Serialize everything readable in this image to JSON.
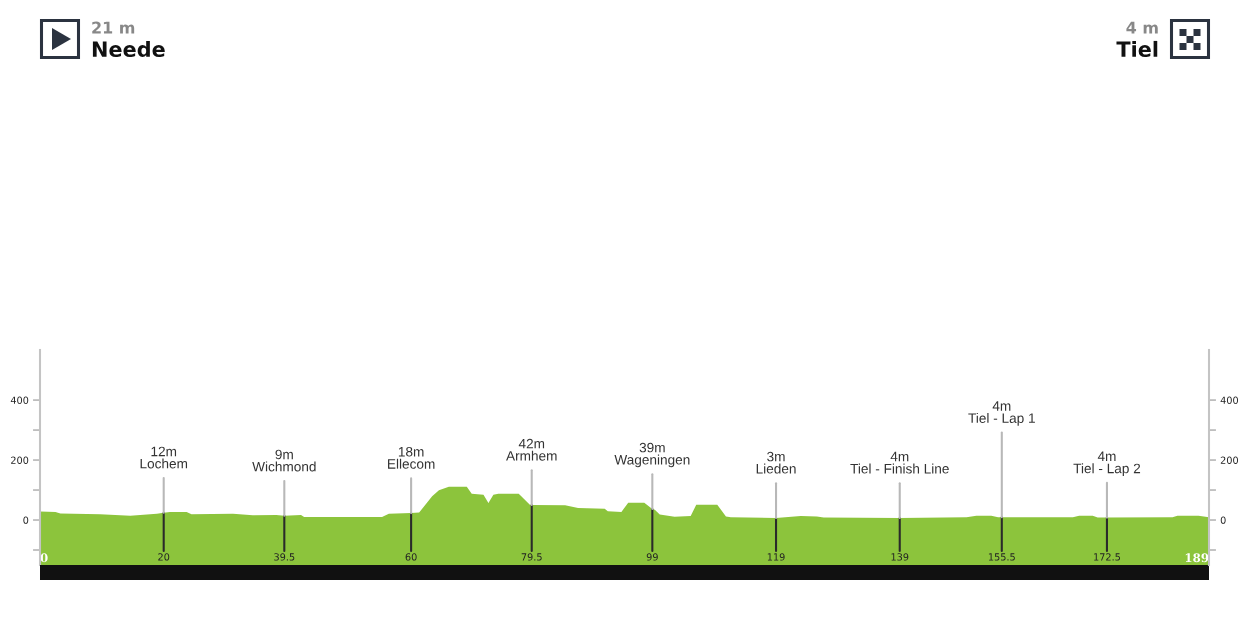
{
  "chart_data": {
    "type": "area",
    "color": "#8cc43c",
    "x": [
      0,
      2.5,
      3.3,
      9.7,
      14.6,
      18.9,
      20,
      21,
      23.7,
      24.5,
      31.2,
      34.4,
      38.2,
      39.5,
      42.2,
      42.7,
      55.3,
      56.4,
      60,
      61.3,
      63.4,
      64.5,
      66.1,
      69,
      69.8,
      71.7,
      72.5,
      73.3,
      74.1,
      77.4,
      79.2,
      79.5,
      84.9,
      87,
      91.3,
      91.8,
      94,
      95.1,
      97.7,
      99,
      99.4,
      100.2,
      102.6,
      105.2,
      106.1,
      109.5,
      110.9,
      111.7,
      119,
      123,
      125.6,
      126.7,
      139,
      149.8,
      151.4,
      153.8,
      154.9,
      155.5,
      167,
      168,
      170.2,
      171,
      172.5,
      183.1,
      183.9,
      187.3,
      189
    ],
    "values": [
      28,
      27,
      22,
      19,
      14,
      21,
      24,
      27,
      27,
      19,
      21,
      16,
      17,
      14,
      17,
      10,
      10,
      21,
      23,
      25,
      79,
      99,
      111,
      111,
      88,
      84,
      57,
      84,
      88,
      88,
      51,
      50,
      49,
      40,
      38,
      29,
      27,
      58,
      58,
      37,
      34,
      18,
      11,
      13,
      51,
      51,
      12,
      9,
      7,
      13,
      12,
      8,
      7,
      9,
      14,
      14,
      9,
      9,
      9,
      14,
      14,
      8,
      8,
      9,
      14,
      14,
      9
    ],
    "xlim": [
      0,
      189
    ],
    "xticks": [
      0,
      20,
      39.5,
      60,
      79.5,
      99,
      119,
      139,
      155.5,
      172.5,
      189
    ],
    "ylim": [
      -150,
      567
    ],
    "yticks": [
      {
        "value": -100,
        "label": null
      },
      0,
      {
        "value": 100,
        "label": null
      },
      200,
      {
        "value": 300,
        "label": null
      },
      400
    ],
    "y2lim": [
      -150,
      567
    ],
    "y2ticks": [
      {
        "value": -100,
        "label": null
      },
      0,
      {
        "value": 100,
        "label": null
      },
      200,
      {
        "value": 300,
        "label": null
      },
      400
    ],
    "bands": [
      {
        "axis": "y",
        "from": -150,
        "to": 0,
        "color": "#8cc43c"
      }
    ],
    "annotations": [
      "21 m",
      "Neede",
      "4 m",
      "Tiel",
      {
        "text": "12m\nLochem",
        "x": 20,
        "y": 24
      },
      {
        "text": "9m\nWichmond",
        "x": 39.5,
        "y": 14
      },
      {
        "text": "18m\nEllecom",
        "x": 60,
        "y": 23
      },
      {
        "text": "42m\nArmhem",
        "x": 79.5,
        "y": 50
      },
      {
        "text": "39m\nWageningen",
        "x": 99,
        "y": 37
      },
      {
        "text": "3m\nLieden",
        "x": 119,
        "y": 7
      },
      {
        "text": "4m\nTiel - Finish Line",
        "x": 139,
        "y": 7
      },
      {
        "text": "4m\nTiel - Lap 1",
        "x": 155.5,
        "y": 9
      },
      {
        "text": "4m\nTiel - Lap 2",
        "x": 172.5,
        "y": 8
      }
    ]
  }
}
